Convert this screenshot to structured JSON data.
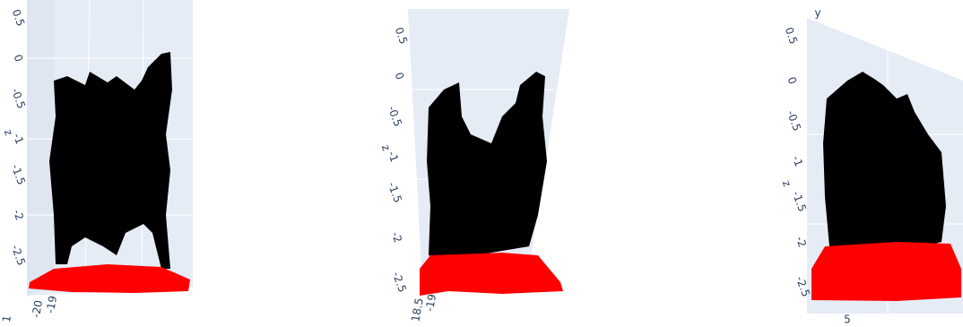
{
  "panels": [
    {
      "axis_title": "z",
      "ticks": [
        "0.5",
        "0",
        "-0.5",
        "-1",
        "-1.5",
        "-2",
        "-2.5"
      ],
      "bottom_ticks": [
        "-20",
        "-19",
        "1"
      ]
    },
    {
      "axis_title": "z",
      "ticks": [
        "0.5",
        "0",
        "-0.5",
        "-1",
        "-1.5",
        "-2",
        "-2.5"
      ],
      "bottom_ticks": [
        "18.5",
        "-19"
      ]
    },
    {
      "axis_title": "z",
      "top_label": "y",
      "ticks": [
        "0.5",
        "0",
        "-0.5",
        "-1",
        "-1.5",
        "-2",
        "-2.5"
      ],
      "bottom_ticks": [
        "5"
      ]
    }
  ]
}
